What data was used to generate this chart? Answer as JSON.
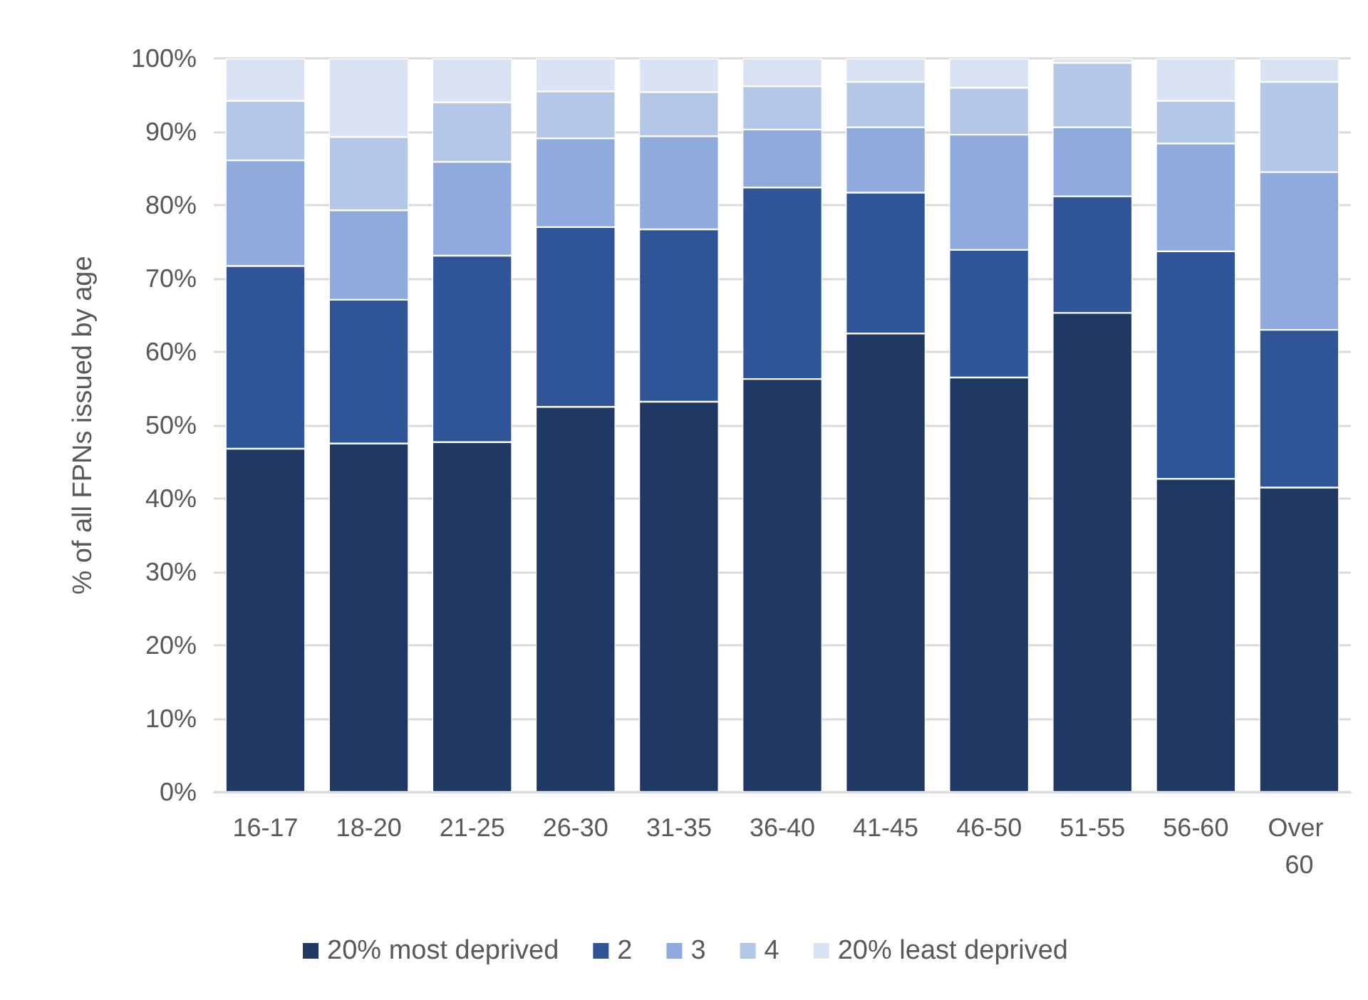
{
  "chart_data": {
    "type": "bar",
    "stacked": true,
    "ylabel": "% of all FPNs issued by age",
    "categories": [
      "16-17",
      "18-20",
      "21-25",
      "26-30",
      "31-35",
      "36-40",
      "41-45",
      "46-50",
      "51-55",
      "56-60",
      "Over 60"
    ],
    "series": [
      {
        "name": "20% most deprived",
        "color": "#203864",
        "values": [
          46.8,
          47.5,
          47.7,
          52.5,
          53.2,
          56.3,
          62.5,
          56.5,
          65.3,
          42.7,
          41.5
        ]
      },
      {
        "name": "2",
        "color": "#2f5597",
        "values": [
          24.9,
          19.6,
          25.4,
          24.5,
          23.5,
          26.1,
          19.2,
          17.4,
          15.9,
          31.0,
          21.5
        ]
      },
      {
        "name": "3",
        "color": "#8faadc",
        "values": [
          14.4,
          12.2,
          12.8,
          12.1,
          12.7,
          7.9,
          8.9,
          15.7,
          9.4,
          14.7,
          21.5
        ]
      },
      {
        "name": "4",
        "color": "#b4c7e7",
        "values": [
          8.1,
          10.0,
          8.1,
          6.4,
          6.0,
          5.9,
          6.2,
          6.4,
          8.8,
          5.8,
          12.3
        ]
      },
      {
        "name": "20% least deprived",
        "color": "#dae3f3",
        "values": [
          5.8,
          10.7,
          6.0,
          4.5,
          4.6,
          3.8,
          3.2,
          4.0,
          0.6,
          5.8,
          3.2
        ]
      }
    ],
    "ylim": [
      0,
      100
    ],
    "yticks": [
      {
        "value": 0,
        "label": "0%"
      },
      {
        "value": 10,
        "label": "10%"
      },
      {
        "value": 20,
        "label": "20%"
      },
      {
        "value": 30,
        "label": "30%"
      },
      {
        "value": 40,
        "label": "40%"
      },
      {
        "value": 50,
        "label": "50%"
      },
      {
        "value": 60,
        "label": "60%"
      },
      {
        "value": 70,
        "label": "70%"
      },
      {
        "value": 80,
        "label": "80%"
      },
      {
        "value": 90,
        "label": "90%"
      },
      {
        "value": 100,
        "label": "100%"
      }
    ],
    "grid": "y",
    "legend": "bottom"
  }
}
